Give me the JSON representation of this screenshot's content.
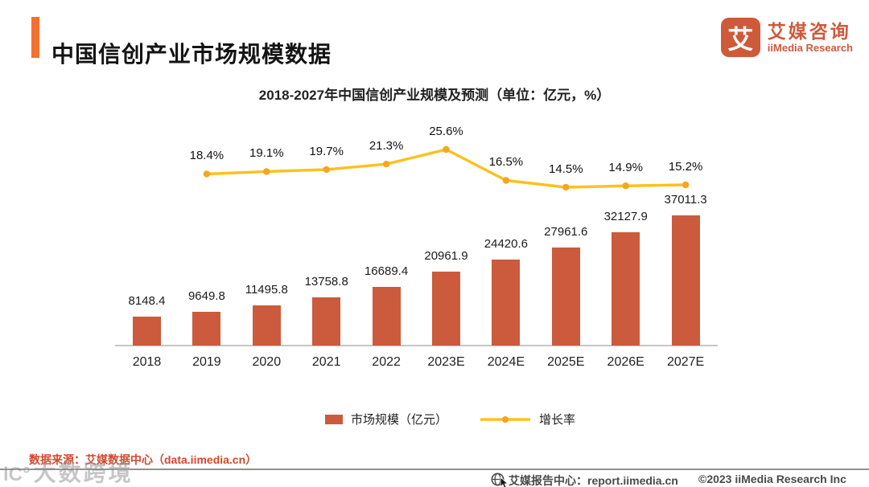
{
  "header": {
    "title": "中国信创产业市场规模数据",
    "accent_color": "#F3702F"
  },
  "logo": {
    "glyph": "艾",
    "name_cn": "艾媒咨询",
    "name_en": "iiMedia Research",
    "brand_color": "#CE5A3A"
  },
  "chart_data": {
    "type": "bar",
    "title": "2018-2027年中国信创产业规模及预测（单位：亿元，%）",
    "categories": [
      "2018",
      "2019",
      "2020",
      "2021",
      "2022",
      "2023E",
      "2024E",
      "2025E",
      "2026E",
      "2027E"
    ],
    "series": [
      {
        "name": "市场规模（亿元）",
        "type": "bar",
        "color": "#CB5B3C",
        "values": [
          8148.4,
          9649.8,
          11495.8,
          13758.8,
          16689.4,
          20961.9,
          24420.6,
          27961.6,
          32127.9,
          37011.3
        ]
      },
      {
        "name": "增长率",
        "type": "line",
        "color": "#FDC11F",
        "marker_color": "#F2A71D",
        "unit": "%",
        "values": [
          null,
          18.4,
          19.1,
          19.7,
          21.3,
          25.6,
          16.5,
          14.5,
          14.9,
          15.2
        ]
      }
    ],
    "value_labels": true,
    "grid": false,
    "legend_position": "bottom",
    "ylim": [
      0,
      40000
    ],
    "y2lim_pct": [
      0,
      30
    ]
  },
  "source": {
    "text": "数据来源：艾媒数据中心（data.iimedia.cn）",
    "color": "#D0492C"
  },
  "watermark": {
    "prefix": "lC°",
    "text": "大数跨境"
  },
  "footer": {
    "report_center": "艾媒报告中心：report.iimedia.cn",
    "copyright": "©2023  iiMedia Research  Inc"
  }
}
